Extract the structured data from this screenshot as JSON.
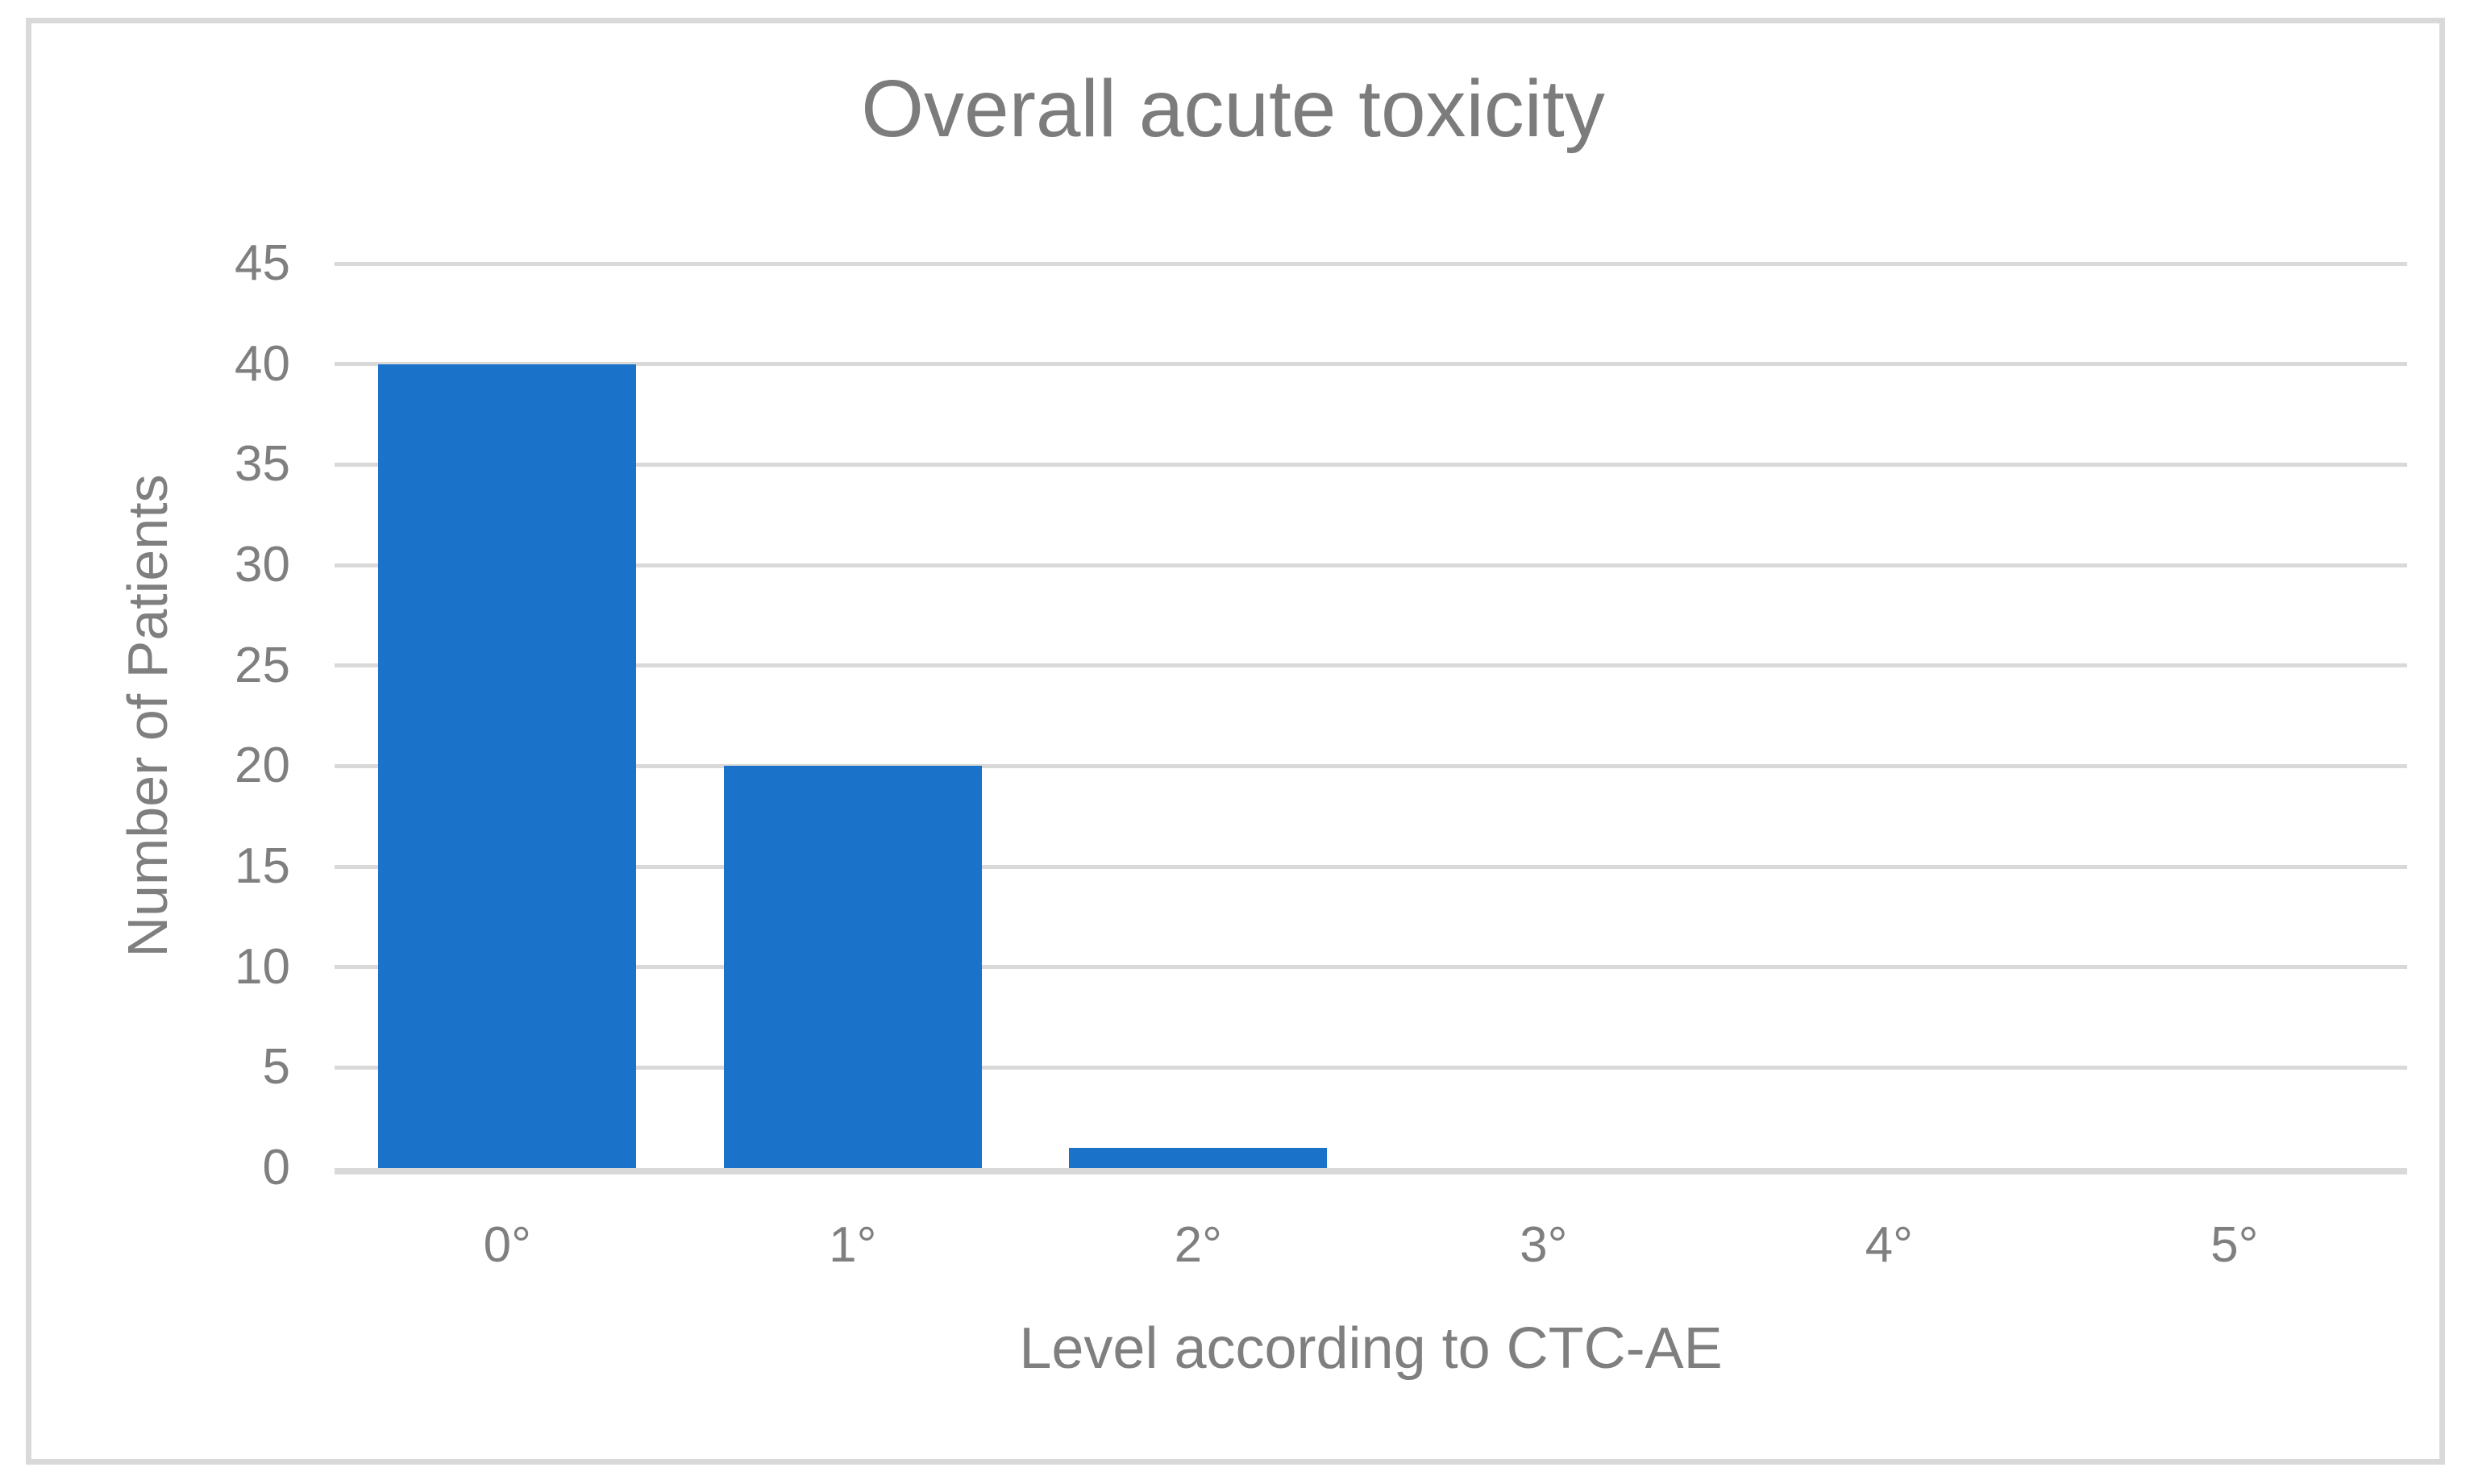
{
  "figure": {
    "background_color": "#ffffff",
    "border_color": "#d9d9d9"
  },
  "chart_data": {
    "type": "bar",
    "title": "Overall acute toxicity",
    "xlabel": "Level according to CTC-AE",
    "ylabel": "Number of Patients",
    "categories": [
      "0°",
      "1°",
      "2°",
      "3°",
      "4°",
      "5°"
    ],
    "values": [
      40,
      20,
      1,
      0,
      0,
      0
    ],
    "ylim": [
      0,
      45
    ],
    "y_ticks": [
      0,
      5,
      10,
      15,
      20,
      25,
      30,
      35,
      40,
      45
    ],
    "grid": "horizontal-only",
    "legend": "none",
    "bar_color": "#1a73c8",
    "gridline_color": "#d9d9d9",
    "axis_line_color": "#d9d9d9",
    "text_color": "#7f7f7f",
    "title_color": "#7c7c7c"
  }
}
